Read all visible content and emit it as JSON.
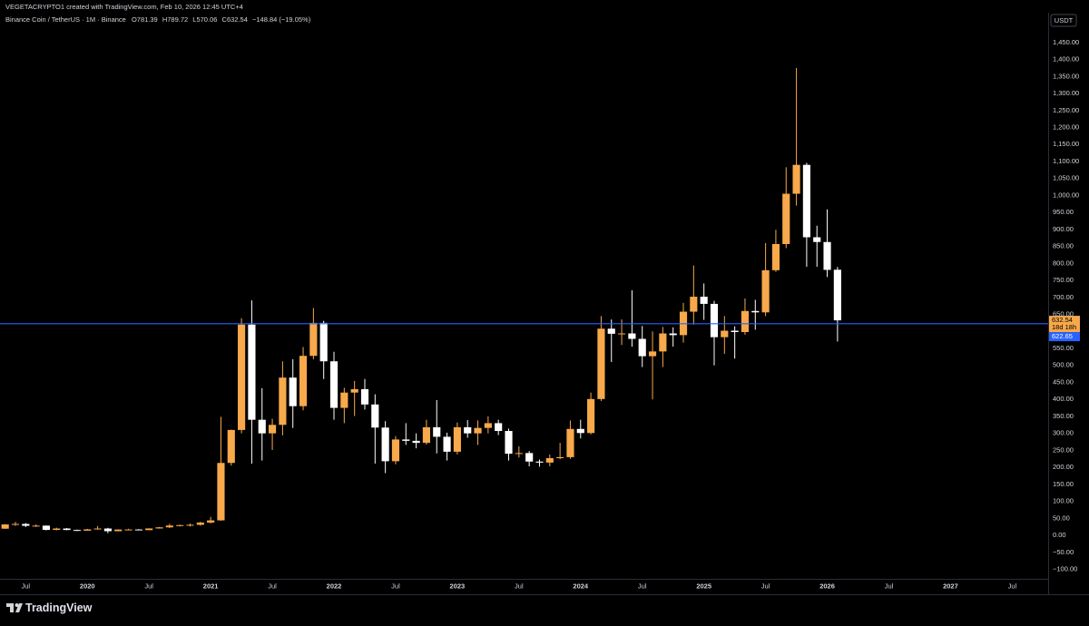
{
  "header": {
    "created": "VEGETACRYPTO1 created with TradingView.com, Feb 10, 2026 12:45 UTC+4"
  },
  "chart_data": {
    "type": "candlestick",
    "title": "Binance Coin / TetherUS · 1M · Binance",
    "ohlc_prefixes": [
      "O",
      "H",
      "L",
      "C"
    ],
    "change_label": "−148.84 (−19.05%)",
    "x": [
      "2019-05",
      "2019-06",
      "2019-07",
      "2019-08",
      "2019-09",
      "2019-10",
      "2019-11",
      "2019-12",
      "2020-01",
      "2020-02",
      "2020-03",
      "2020-04",
      "2020-05",
      "2020-06",
      "2020-07",
      "2020-08",
      "2020-09",
      "2020-10",
      "2020-11",
      "2020-12",
      "2021-01",
      "2021-02",
      "2021-03",
      "2021-04",
      "2021-05",
      "2021-06",
      "2021-07",
      "2021-08",
      "2021-09",
      "2021-10",
      "2021-11",
      "2021-12",
      "2022-01",
      "2022-02",
      "2022-03",
      "2022-04",
      "2022-05",
      "2022-06",
      "2022-07",
      "2022-08",
      "2022-09",
      "2022-10",
      "2022-11",
      "2022-12",
      "2023-01",
      "2023-02",
      "2023-03",
      "2023-04",
      "2023-05",
      "2023-06",
      "2023-07",
      "2023-08",
      "2023-09",
      "2023-10",
      "2023-11",
      "2023-12",
      "2024-01",
      "2024-02",
      "2024-03",
      "2024-04",
      "2024-05",
      "2024-06",
      "2024-07",
      "2024-08",
      "2024-09",
      "2024-10",
      "2024-11",
      "2024-12",
      "2025-01",
      "2025-02",
      "2025-03",
      "2025-04",
      "2025-05",
      "2025-06",
      "2025-07",
      "2025-08",
      "2025-09",
      "2025-10",
      "2025-11",
      "2025-12",
      "2026-01",
      "2026-02"
    ],
    "open": [
      19.5,
      32,
      33.5,
      28,
      28.5,
      16,
      20,
      15.7,
      13.7,
      17.5,
      20,
      12.2,
      17,
      17.2,
      15.3,
      20.2,
      23.5,
      28.7,
      30,
      31,
      37.4,
      44,
      213,
      310,
      620,
      340,
      300,
      325,
      464,
      380,
      528,
      625,
      512,
      375,
      420,
      430,
      385,
      317,
      218,
      282,
      278,
      272,
      318,
      290,
      246,
      318,
      300,
      316,
      330,
      307,
      240,
      242,
      217,
      214,
      227,
      230,
      313,
      301,
      401,
      608,
      593,
      594,
      578,
      527,
      541,
      594,
      589,
      658,
      702,
      681,
      583,
      602,
      598,
      660,
      656,
      780,
      857,
      1005,
      1090,
      877,
      863,
      781.39
    ],
    "high": [
      33,
      39.5,
      36,
      32,
      29,
      22.5,
      21.5,
      17,
      19,
      27.5,
      22,
      17.6,
      19.3,
      18.5,
      20.7,
      24.6,
      33.8,
      31.5,
      34.7,
      40,
      54.3,
      348.7,
      311,
      639,
      691,
      433,
      343,
      512,
      518,
      554,
      669,
      631,
      540,
      434,
      454,
      460,
      415,
      336,
      292,
      330,
      300,
      340,
      398,
      302,
      332,
      339,
      338,
      350,
      340,
      314,
      262,
      248,
      223,
      238,
      272,
      338,
      340,
      420,
      645,
      635,
      635,
      721,
      616,
      600,
      613,
      612,
      684,
      794,
      741,
      690,
      645,
      615,
      697,
      693,
      860,
      899,
      1083,
      1375,
      1096,
      911,
      959,
      789.72
    ],
    "low": [
      18.5,
      28,
      24.5,
      24.8,
      14.5,
      15,
      15,
      12.8,
      13.5,
      17,
      6.4,
      11.9,
      15.2,
      15,
      15.1,
      19.9,
      21.4,
      26.3,
      25.8,
      28.5,
      35.2,
      43,
      205,
      300,
      211,
      220,
      251,
      294,
      316,
      368,
      518,
      460,
      340,
      330,
      351,
      370,
      211,
      183,
      209,
      266,
      256,
      267,
      241,
      220,
      238,
      287,
      266,
      300,
      295,
      220,
      229,
      203,
      202,
      203,
      224,
      225,
      285,
      297,
      395,
      510,
      560,
      555,
      495,
      400,
      495,
      555,
      567,
      620,
      634,
      500,
      534,
      520,
      590,
      605,
      645,
      775,
      845,
      970,
      790,
      790,
      760,
      570.06
    ],
    "close": [
      32,
      33.5,
      28,
      28.5,
      16,
      20,
      15.7,
      13.7,
      17.5,
      20,
      12.2,
      17,
      17.2,
      15.3,
      20.2,
      23.5,
      28.7,
      30,
      31,
      37.4,
      44,
      213,
      310,
      620,
      340,
      300,
      325,
      464,
      380,
      528,
      625,
      512,
      375,
      420,
      430,
      385,
      317,
      218,
      282,
      278,
      272,
      318,
      290,
      246,
      318,
      300,
      316,
      330,
      307,
      240,
      242,
      217,
      214,
      227,
      230,
      313,
      301,
      401,
      608,
      593,
      594,
      578,
      527,
      541,
      594,
      589,
      658,
      702,
      681,
      583,
      602,
      598,
      660,
      656,
      780,
      857,
      1005,
      1090,
      877,
      863,
      781,
      632.54
    ],
    "up_color": "#f7a94b",
    "down_color": "#ffffff",
    "price_label_color": "#f7a94b",
    "xlim": [
      "2019-05",
      "2027-10"
    ],
    "xticks": [
      {
        "value": "2019-07",
        "label": "Jul"
      },
      {
        "value": "2020-01",
        "label": "2020"
      },
      {
        "value": "2020-07",
        "label": "Jul"
      },
      {
        "value": "2021-01",
        "label": "2021"
      },
      {
        "value": "2021-07",
        "label": "Jul"
      },
      {
        "value": "2022-01",
        "label": "2022"
      },
      {
        "value": "2022-07",
        "label": "Jul"
      },
      {
        "value": "2023-01",
        "label": "2023"
      },
      {
        "value": "2023-07",
        "label": "Jul"
      },
      {
        "value": "2024-01",
        "label": "2024"
      },
      {
        "value": "2024-07",
        "label": "Jul"
      },
      {
        "value": "2025-01",
        "label": "2025"
      },
      {
        "value": "2025-07",
        "label": "Jul"
      },
      {
        "value": "2026-01",
        "label": "2026"
      },
      {
        "value": "2026-07",
        "label": "Jul"
      },
      {
        "value": "2027-01",
        "label": "2027"
      },
      {
        "value": "2027-07",
        "label": "Jul"
      }
    ],
    "ylim": [
      -128,
      1535
    ],
    "yticks": [
      {
        "value": -100,
        "label": "−100.00"
      },
      {
        "value": -50,
        "label": "−50.00"
      },
      {
        "value": 0,
        "label": "0.00"
      },
      {
        "value": 50,
        "label": "50.00"
      },
      {
        "value": 100,
        "label": "100.00"
      },
      {
        "value": 150,
        "label": "150.00"
      },
      {
        "value": 200,
        "label": "200.00"
      },
      {
        "value": 250,
        "label": "250.00"
      },
      {
        "value": 300,
        "label": "300.00"
      },
      {
        "value": 350,
        "label": "350.00"
      },
      {
        "value": 400,
        "label": "400.00"
      },
      {
        "value": 450,
        "label": "450.00"
      },
      {
        "value": 500,
        "label": "500.00"
      },
      {
        "value": 550,
        "label": "550.00"
      },
      {
        "value": 600,
        "label": "600.00"
      },
      {
        "value": 650,
        "label": "650.00"
      },
      {
        "value": 700,
        "label": "700.00"
      },
      {
        "value": 750,
        "label": "750.00"
      },
      {
        "value": 800,
        "label": "800.00"
      },
      {
        "value": 850,
        "label": "850.00"
      },
      {
        "value": 900,
        "label": "900.00"
      },
      {
        "value": 950,
        "label": "950.00"
      },
      {
        "value": 1000,
        "label": "1,000.00"
      },
      {
        "value": 1050,
        "label": "1,050.00"
      },
      {
        "value": 1100,
        "label": "1,100.00"
      },
      {
        "value": 1150,
        "label": "1,150.00"
      },
      {
        "value": 1200,
        "label": "1,200.00"
      },
      {
        "value": 1250,
        "label": "1,250.00"
      },
      {
        "value": 1300,
        "label": "1,300.00"
      },
      {
        "value": 1350,
        "label": "1,350.00"
      },
      {
        "value": 1400,
        "label": "1,400.00"
      },
      {
        "value": 1450,
        "label": "1,450.00"
      }
    ],
    "y_unit": "USDT",
    "price_line": {
      "value": 622.65,
      "color": "#2962ff"
    },
    "countdown": "18d 18h",
    "grid": false
  },
  "branding": "TradingView"
}
